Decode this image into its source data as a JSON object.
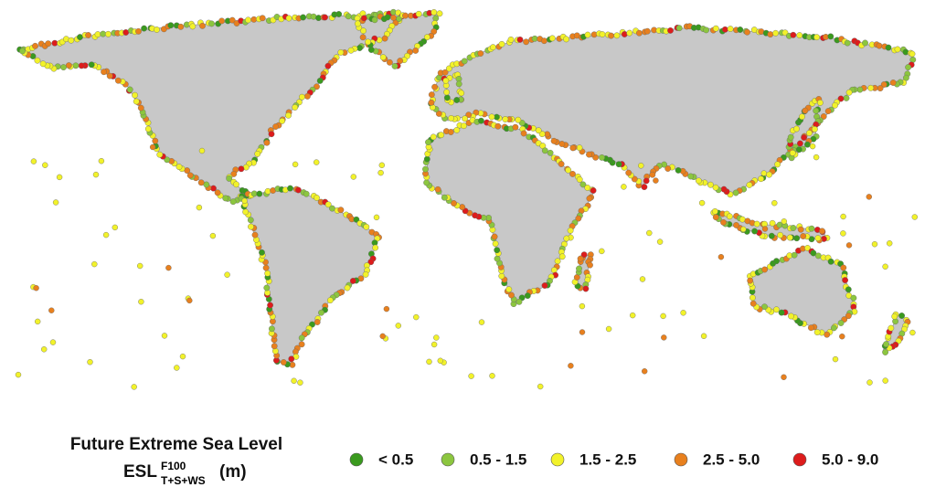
{
  "legend": {
    "title": "Future Extreme Sea Level",
    "label": "ESL",
    "superscript": "F100",
    "subscript": "T+S+WS",
    "unit": "(m)",
    "items": [
      {
        "label": "< 0.5",
        "color": "#3a9a1e"
      },
      {
        "label": "0.5 - 1.5",
        "color": "#8cc63f"
      },
      {
        "label": "1.5 - 2.5",
        "color": "#f2f22a"
      },
      {
        "label": "2.5 - 5.0",
        "color": "#e8801e"
      },
      {
        "label": "5.0 - 9.0",
        "color": "#dd1c1c"
      }
    ]
  }
}
